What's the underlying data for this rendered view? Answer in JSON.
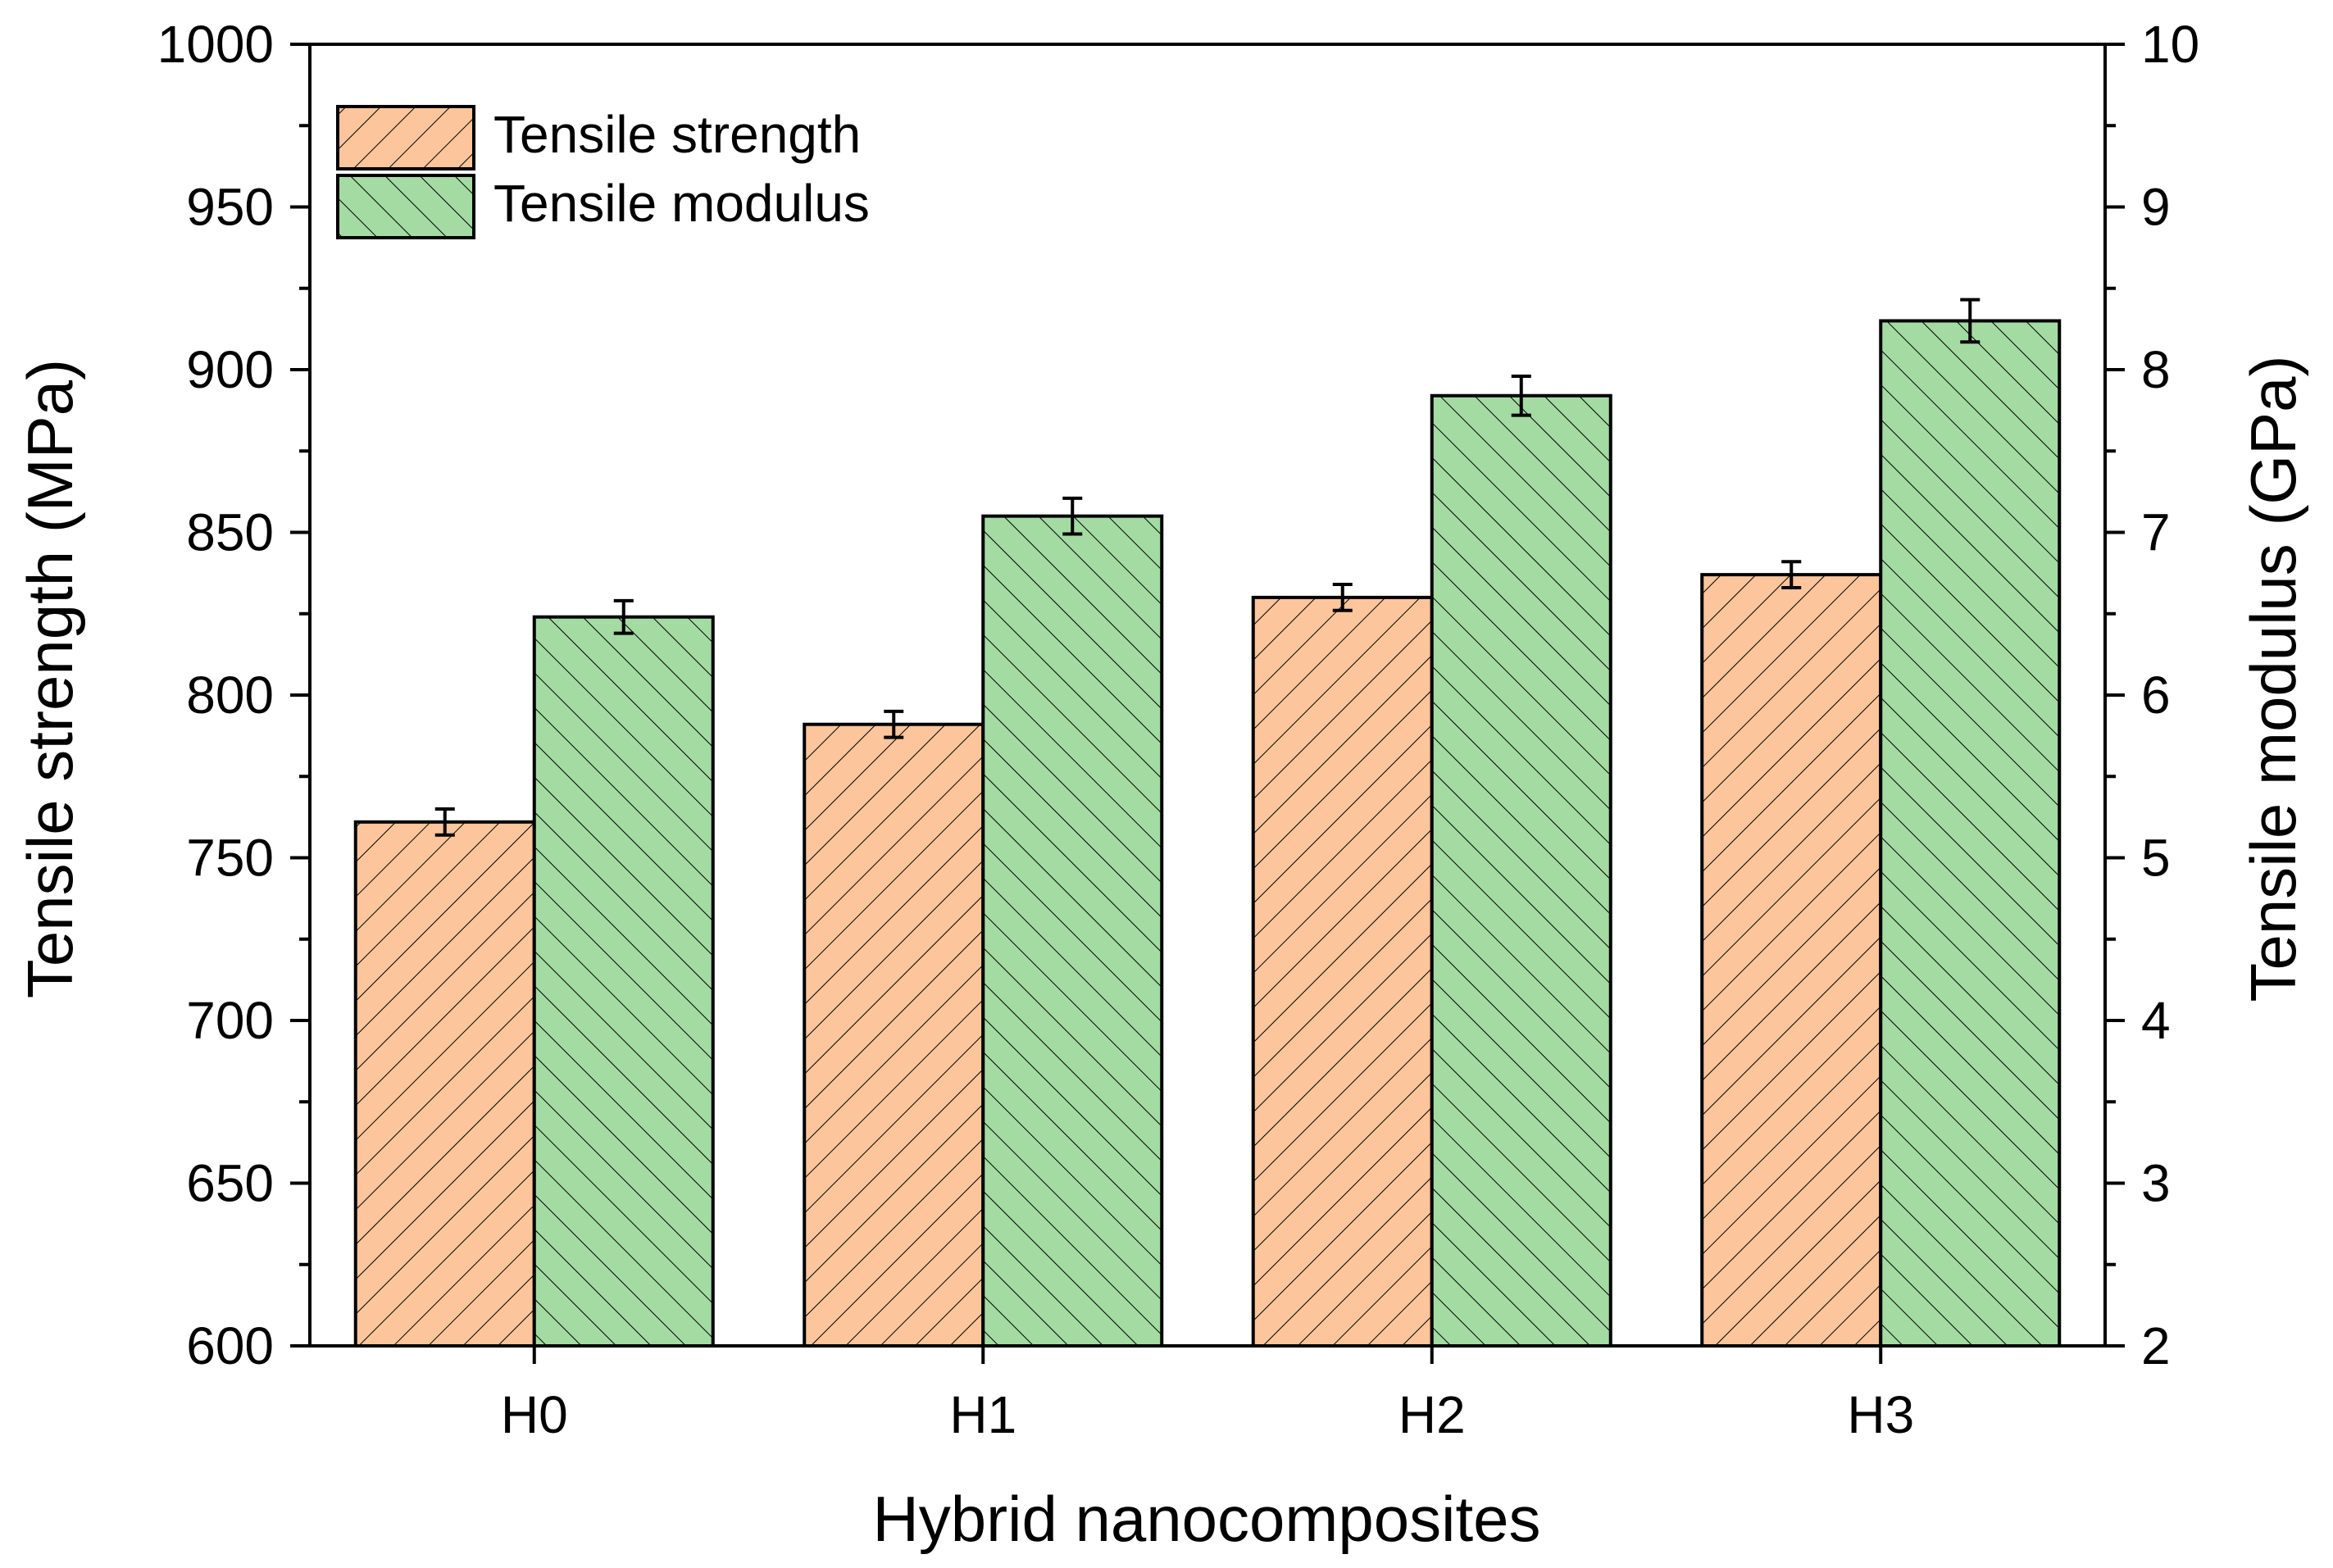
{
  "chart_data": {
    "type": "bar",
    "categories": [
      "H0",
      "H1",
      "H2",
      "H3"
    ],
    "xlabel": "Hybrid nanocomposites",
    "ylabel_left": "Tensile strength (MPa)",
    "ylabel_right": "Tensile modulus (GPa)",
    "ylim_left": [
      600,
      1000
    ],
    "ylim_right": [
      2,
      10
    ],
    "yticks_left": [
      "600",
      "650",
      "700",
      "750",
      "800",
      "850",
      "900",
      "950",
      "1000"
    ],
    "yticks_right": [
      "2",
      "3",
      "4",
      "5",
      "6",
      "7",
      "8",
      "9",
      "10"
    ],
    "legend_position": "top-left",
    "grid": false,
    "series": [
      {
        "name": "Tensile strength",
        "axis": "left",
        "color": "#fcc59b",
        "hatch": "forward-diagonal",
        "values": [
          761,
          791,
          830,
          837
        ],
        "errors": [
          4,
          4,
          4,
          4
        ]
      },
      {
        "name": "Tensile modulus",
        "axis": "right",
        "color": "#a3dba3",
        "hatch": "back-diagonal",
        "values": [
          6.48,
          7.1,
          7.84,
          8.3
        ],
        "errors": [
          0.1,
          0.11,
          0.12,
          0.13
        ]
      }
    ]
  }
}
